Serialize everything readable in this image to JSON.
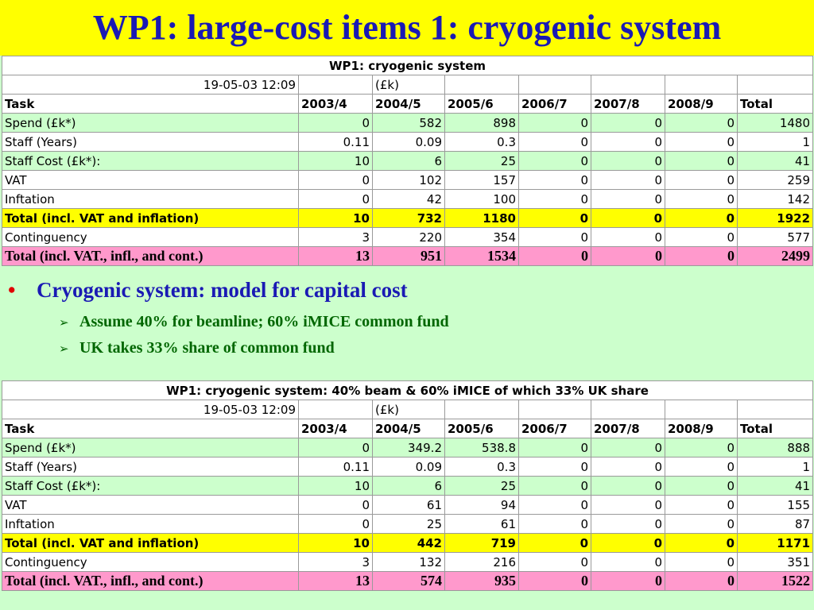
{
  "slide_title": "WP1: large-cost items 1: cryogenic system",
  "table1": {
    "caption": "WP1: cryogenic system",
    "timestamp": "19-05-03 12:09",
    "unit": "(£k)",
    "headers": [
      "Task",
      "2003/4",
      "2004/5",
      "2005/6",
      "2006/7",
      "2007/8",
      "2008/9",
      "Total"
    ],
    "rows": [
      [
        "Spend (£k*)",
        "0",
        "582",
        "898",
        "0",
        "0",
        "0",
        "1480"
      ],
      [
        "Staff (Years)",
        "0.11",
        "0.09",
        "0.3",
        "0",
        "0",
        "0",
        "1"
      ],
      [
        "Staff Cost (£k*):",
        "10",
        "6",
        "25",
        "0",
        "0",
        "0",
        "41"
      ],
      [
        "VAT",
        "0",
        "102",
        "157",
        "0",
        "0",
        "0",
        "259"
      ],
      [
        "Inftation",
        "0",
        "42",
        "100",
        "0",
        "0",
        "0",
        "142"
      ],
      [
        "Total (incl. VAT and inflation)",
        "10",
        "732",
        "1180",
        "0",
        "0",
        "0",
        "1922"
      ],
      [
        "Continguency",
        "3",
        "220",
        "354",
        "0",
        "0",
        "0",
        "577"
      ],
      [
        "Total (incl. VAT., infl., and cont.)",
        "13",
        "951",
        "1534",
        "0",
        "0",
        "0",
        "2499"
      ]
    ]
  },
  "bullets": {
    "main": "Cryogenic system: model for capital cost",
    "sub": [
      "Assume 40% for beamline; 60% iMICE common fund",
      "UK takes 33% share of common fund"
    ]
  },
  "table2": {
    "caption": "WP1: cryogenic system: 40% beam & 60% iMICE of which 33% UK share",
    "timestamp": "19-05-03 12:09",
    "unit": "(£k)",
    "headers": [
      "Task",
      "2003/4",
      "2004/5",
      "2005/6",
      "2006/7",
      "2007/8",
      "2008/9",
      "Total"
    ],
    "rows": [
      [
        "Spend (£k*)",
        "0",
        "349.2",
        "538.8",
        "0",
        "0",
        "0",
        "888"
      ],
      [
        "Staff (Years)",
        "0.11",
        "0.09",
        "0.3",
        "0",
        "0",
        "0",
        "1"
      ],
      [
        "Staff Cost (£k*):",
        "10",
        "6",
        "25",
        "0",
        "0",
        "0",
        "41"
      ],
      [
        "VAT",
        "0",
        "61",
        "94",
        "0",
        "0",
        "0",
        "155"
      ],
      [
        "Inftation",
        "0",
        "25",
        "61",
        "0",
        "0",
        "0",
        "87"
      ],
      [
        "Total (incl. VAT and inflation)",
        "10",
        "442",
        "719",
        "0",
        "0",
        "0",
        "1171"
      ],
      [
        "Continguency",
        "3",
        "132",
        "216",
        "0",
        "0",
        "0",
        "351"
      ],
      [
        "Total (incl. VAT., infl., and cont.)",
        "13",
        "574",
        "935",
        "0",
        "0",
        "0",
        "1522"
      ]
    ]
  },
  "colors": {
    "title_bg": "#ffff00",
    "title_text": "#1a1ab4",
    "slide_bg": "#ccffcc",
    "total_row": "#ffff00",
    "grand_total_row": "#ff99cc",
    "bullet": "#e00000",
    "sub_bullet_text": "#006600"
  },
  "icons": {
    "main_bullet": "bullet-dot-icon",
    "sub_bullet": "arrow-bullet-icon"
  }
}
